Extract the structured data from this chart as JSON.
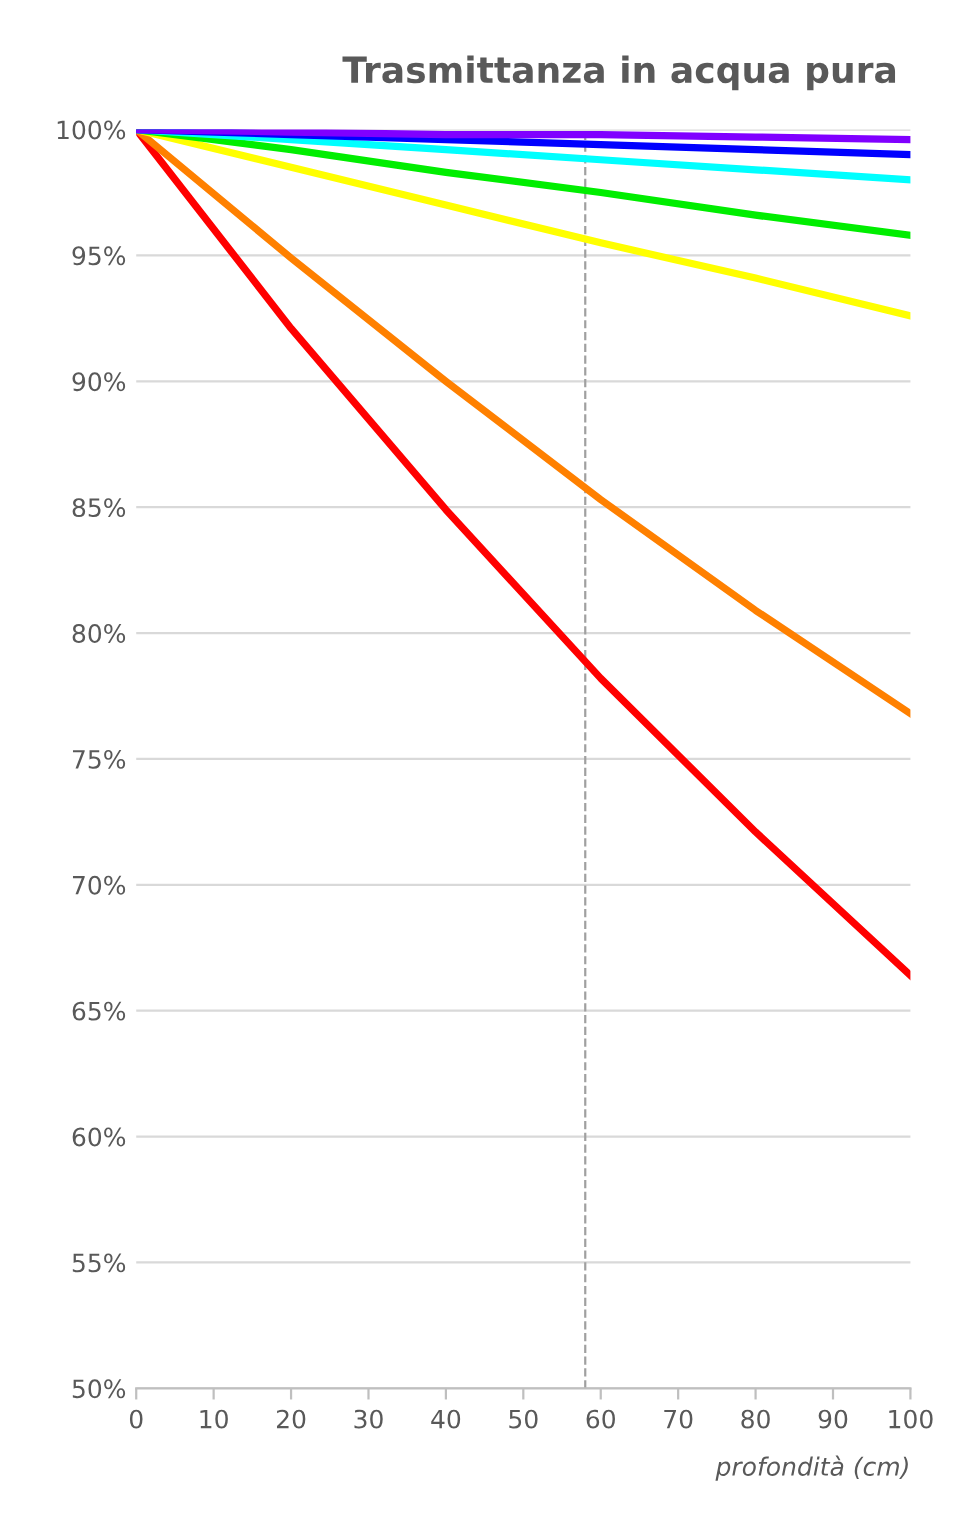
{
  "chart_data": {
    "type": "line",
    "title": "Trasmittanza in acqua pura",
    "xlabel": "profondità (cm)",
    "x": [
      0,
      20,
      40,
      60,
      80,
      100
    ],
    "series": [
      {
        "color": "#ff0000",
        "values": [
          100,
          92.1,
          84.9,
          78.2,
          72.1,
          66.4
        ]
      },
      {
        "color": "#ff8000",
        "values": [
          100,
          94.9,
          90.0,
          85.3,
          80.9,
          76.8
        ]
      },
      {
        "color": "#ffff00",
        "values": [
          100,
          98.5,
          97.0,
          95.5,
          94.1,
          92.6
        ]
      },
      {
        "color": "#00ee00",
        "values": [
          100,
          99.2,
          98.3,
          97.5,
          96.6,
          95.8
        ]
      },
      {
        "color": "#00ffff",
        "values": [
          100,
          99.6,
          99.2,
          98.8,
          98.4,
          98.0
        ]
      },
      {
        "color": "#0000ff",
        "values": [
          100,
          99.8,
          99.6,
          99.4,
          99.2,
          99.0
        ]
      },
      {
        "color": "#8000ff",
        "values": [
          100,
          99.9,
          99.8,
          99.8,
          99.7,
          99.6
        ]
      }
    ],
    "xlim": [
      0,
      100
    ],
    "ylim": [
      50,
      100
    ],
    "xticks": [
      0,
      10,
      20,
      30,
      40,
      50,
      60,
      70,
      80,
      90,
      100
    ],
    "yticks": [
      {
        "value": 50,
        "label": "50%"
      },
      {
        "value": 55,
        "label": "55%"
      },
      {
        "value": 60,
        "label": "60%"
      },
      {
        "value": 65,
        "label": "65%"
      },
      {
        "value": 70,
        "label": "70%"
      },
      {
        "value": 75,
        "label": "75%"
      },
      {
        "value": 80,
        "label": "80%"
      },
      {
        "value": 85,
        "label": "85%"
      },
      {
        "value": 90,
        "label": "90%"
      },
      {
        "value": 95,
        "label": "95%"
      },
      {
        "value": 100,
        "label": "100%"
      }
    ],
    "ref_lines": [
      {
        "axis": "x",
        "value": 58,
        "color": "#a0a0a0",
        "line_style": "dashed"
      }
    ],
    "grid": "y",
    "marker": "none",
    "line_style": "solid"
  }
}
